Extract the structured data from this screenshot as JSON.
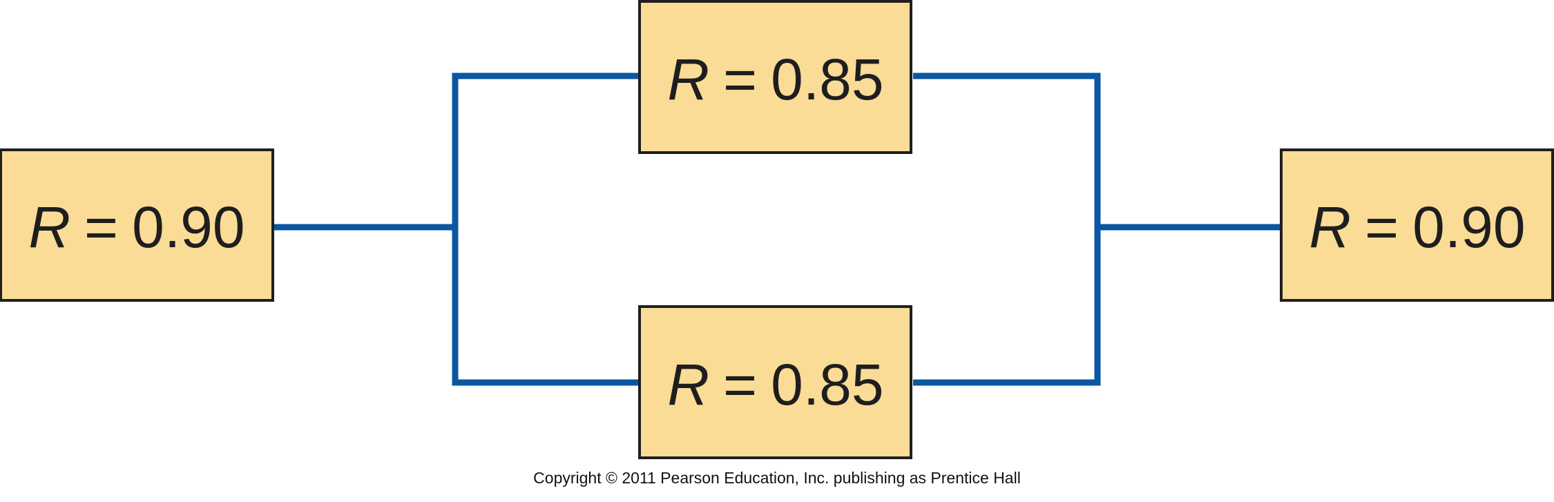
{
  "diagram": {
    "variable": "R",
    "equals": "=",
    "components": [
      {
        "id": "input",
        "value": "0.90"
      },
      {
        "id": "parallel_top",
        "value": "0.85"
      },
      {
        "id": "parallel_bottom",
        "value": "0.85"
      },
      {
        "id": "output",
        "value": "0.90"
      }
    ]
  },
  "colors": {
    "box_fill": "#fbdc96",
    "box_stroke": "#1f1f1f",
    "wire": "#0a57a3"
  },
  "footer": {
    "copyright": "Copyright © 2011 Pearson Education, Inc. publishing as Prentice Hall"
  }
}
